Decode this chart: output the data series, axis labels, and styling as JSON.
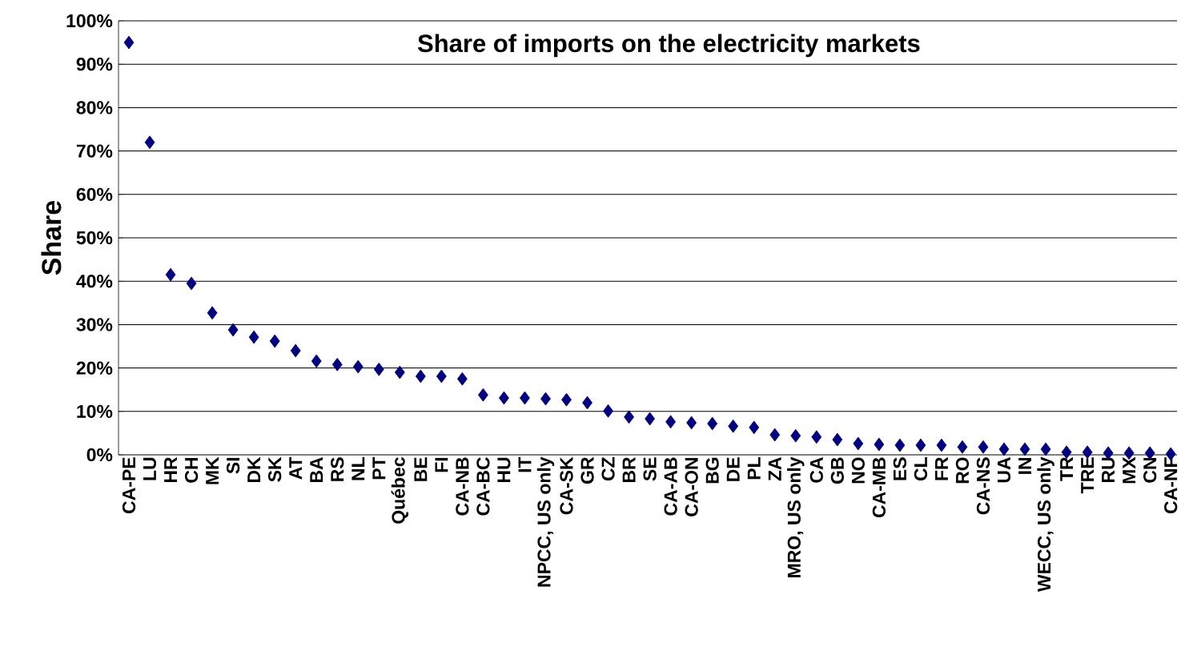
{
  "chart_data": {
    "type": "scatter",
    "title": "Share of imports on the electricity markets",
    "ylabel": "Share",
    "categories": [
      "CA-PE",
      "LU",
      "HR",
      "CH",
      "MK",
      "SI",
      "DK",
      "SK",
      "AT",
      "BA",
      "RS",
      "NL",
      "PT",
      "Québec",
      "BE",
      "FI",
      "CA-NB",
      "CA-BC",
      "HU",
      "IT",
      "NPCC, US only",
      "CA-SK",
      "GR",
      "CZ",
      "BR",
      "SE",
      "CA-AB",
      "CA-ON",
      "BG",
      "DE",
      "PL",
      "ZA",
      "MRO, US only",
      "CA",
      "GB",
      "NO",
      "CA-MB",
      "ES",
      "CL",
      "FR",
      "RO",
      "CA-NS",
      "UA",
      "IN",
      "WECC, US only",
      "TR",
      "TRE",
      "RU",
      "MX",
      "CN",
      "CA-NF"
    ],
    "values": [
      95.0,
      72.0,
      41.5,
      39.5,
      32.7,
      28.8,
      27.1,
      26.2,
      24.0,
      21.6,
      20.8,
      20.3,
      19.7,
      19.0,
      18.1,
      18.1,
      17.5,
      13.8,
      13.1,
      13.1,
      12.9,
      12.7,
      12.0,
      10.1,
      8.7,
      8.3,
      7.6,
      7.4,
      7.2,
      6.6,
      6.3,
      4.6,
      4.4,
      4.1,
      3.5,
      2.6,
      2.4,
      2.2,
      2.2,
      2.2,
      1.8,
      1.8,
      1.3,
      1.3,
      1.3,
      0.6,
      0.6,
      0.4,
      0.4,
      0.4,
      0.2
    ],
    "color": "#000080",
    "marker": "diamond",
    "grid": "y",
    "ylim": [
      0,
      100
    ],
    "yticks": [
      {
        "value": 0,
        "label": "0%"
      },
      {
        "value": 10,
        "label": "10%"
      },
      {
        "value": 20,
        "label": "20%"
      },
      {
        "value": 30,
        "label": "30%"
      },
      {
        "value": 40,
        "label": "40%"
      },
      {
        "value": 50,
        "label": "50%"
      },
      {
        "value": 60,
        "label": "60%"
      },
      {
        "value": 70,
        "label": "70%"
      },
      {
        "value": 80,
        "label": "80%"
      },
      {
        "value": 90,
        "label": "90%"
      },
      {
        "value": 100,
        "label": "100%"
      }
    ]
  }
}
